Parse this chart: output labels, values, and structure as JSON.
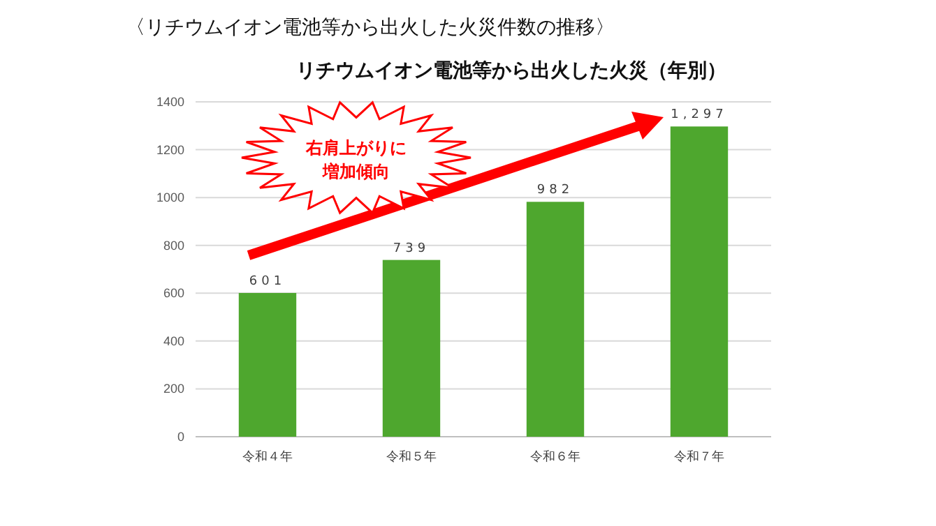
{
  "chart_data": {
    "type": "bar",
    "title": "〈リチウムイオン電池等から出火した火災件数の推移〉",
    "subtitle": "リチウムイオン電池等から出火した火災（年別）",
    "categories": [
      "令和４年",
      "令和５年",
      "令和６年",
      "令和７年"
    ],
    "values": [
      601,
      739,
      982,
      1297
    ],
    "color": "#4ea72e",
    "value_labels": [
      "601",
      "739",
      "982",
      "1,297"
    ],
    "ylim": [
      0,
      1400
    ],
    "yticks": [
      0,
      200,
      400,
      600,
      800,
      1000,
      1200,
      1400
    ],
    "grid": "y",
    "annotations": [
      "右肩上がりに",
      "増加傾向"
    ]
  }
}
